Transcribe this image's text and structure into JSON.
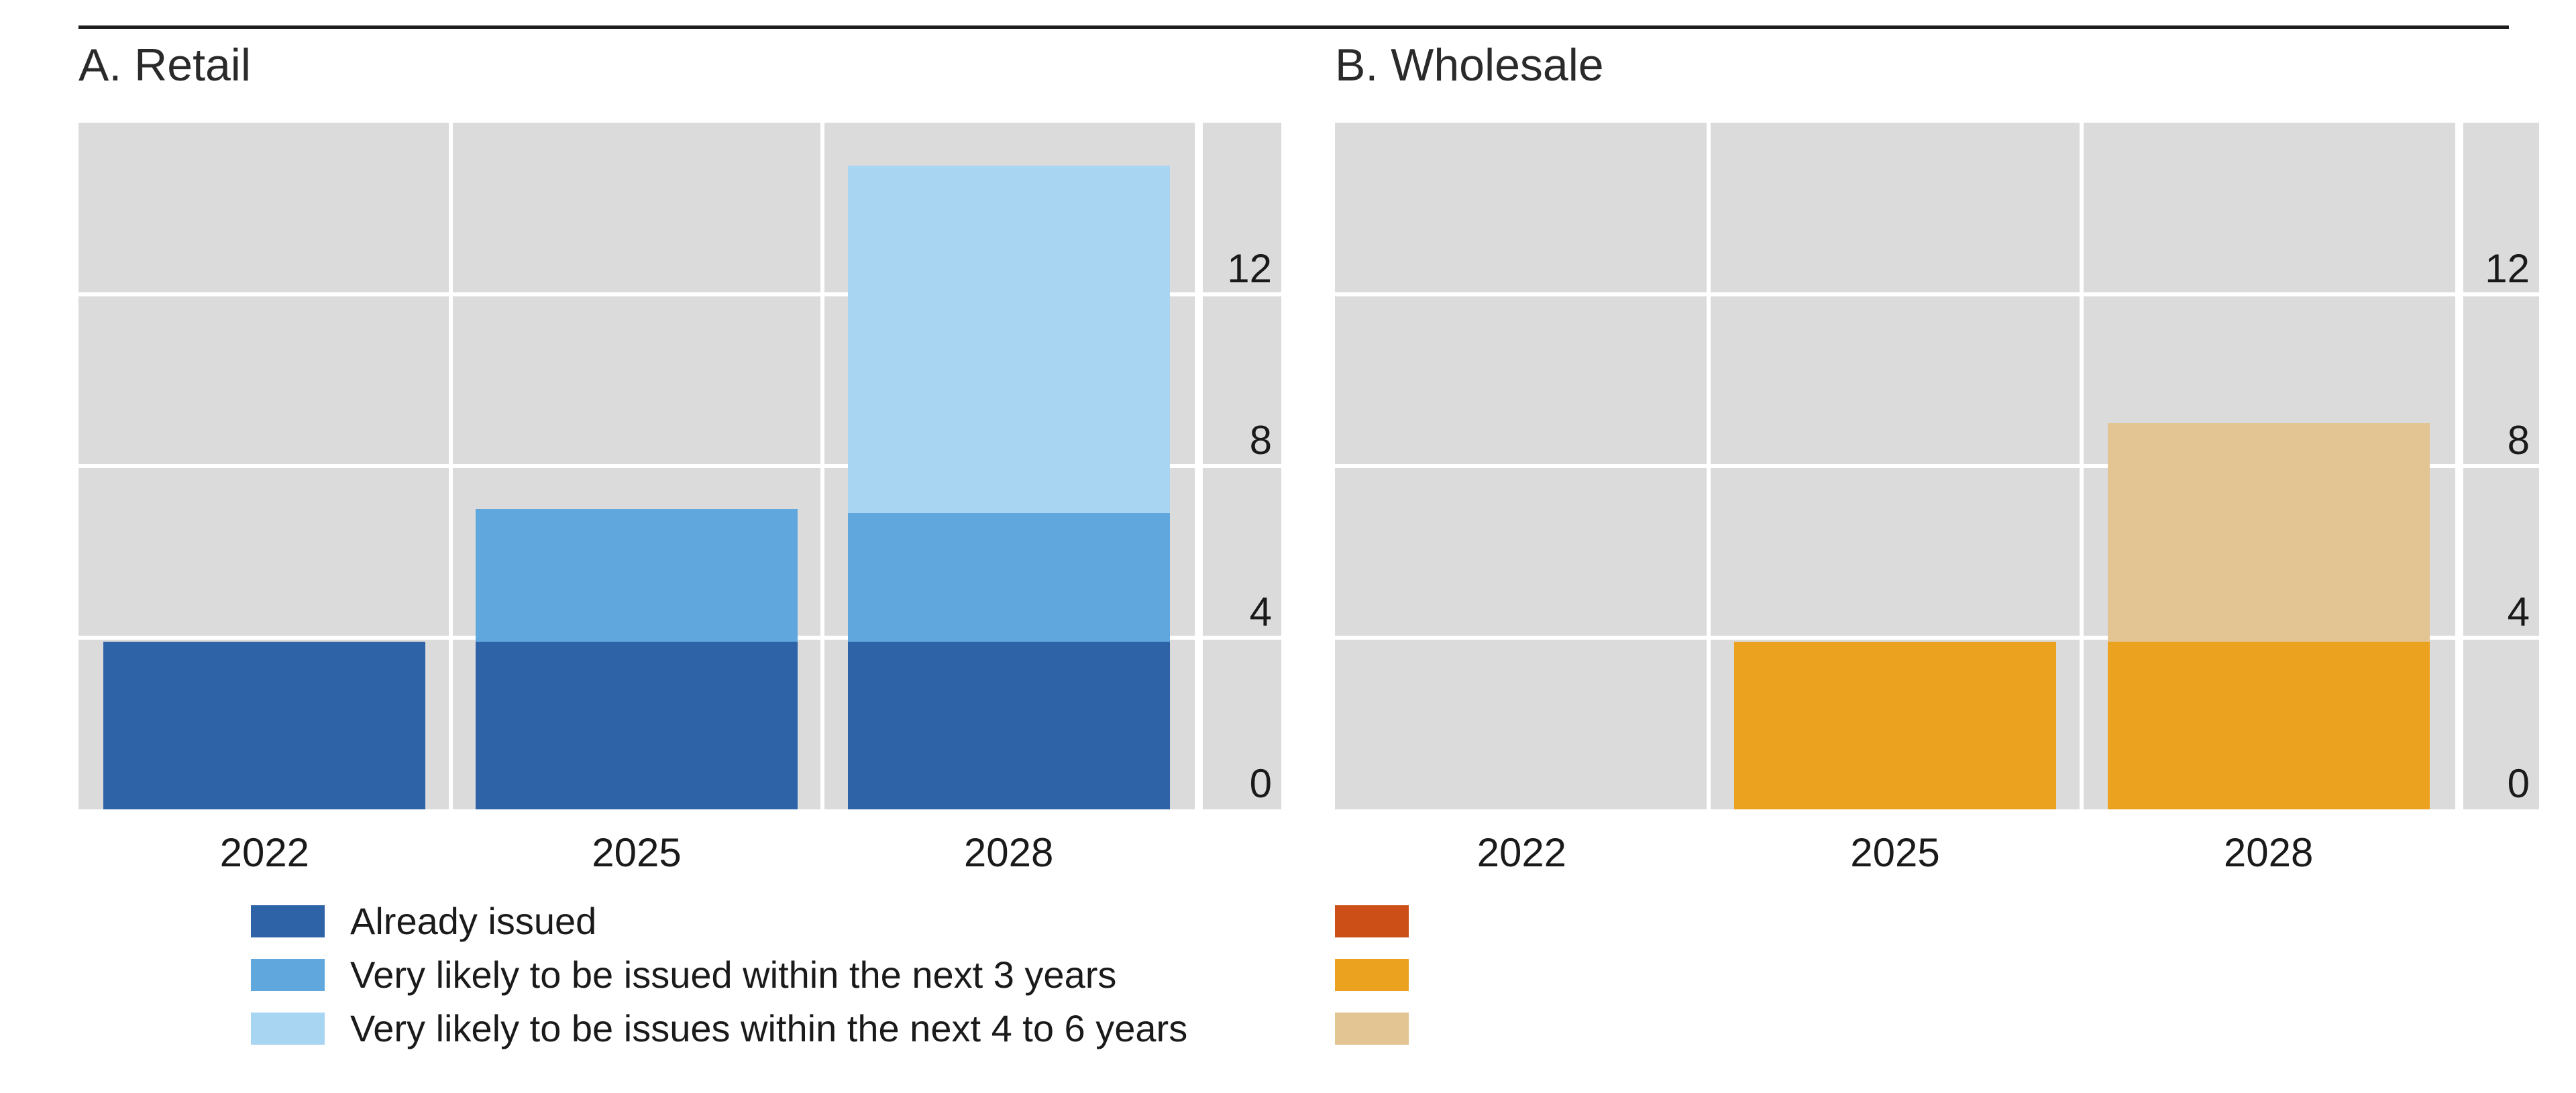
{
  "figure": {
    "panels": [
      {
        "title": "A. Retail"
      },
      {
        "title": "B. Wholesale"
      }
    ]
  },
  "chart_data": [
    {
      "type": "bar",
      "stacked": true,
      "title": "A. Retail",
      "categories": [
        "2022",
        "2025",
        "2028"
      ],
      "series": [
        {
          "name": "Already issued",
          "color": "#2F63A8",
          "values": [
            3.9,
            3.9,
            3.9
          ]
        },
        {
          "name": "Very likely to be issued within the next 3 years",
          "color": "#5FA7DC",
          "values": [
            0,
            3.1,
            3.0
          ]
        },
        {
          "name": "Very likely to be issues within the next 4 to 6 years",
          "color": "#A8D5F2",
          "values": [
            0,
            0,
            8.1
          ]
        }
      ],
      "totals": [
        3.9,
        7.0,
        15.0
      ],
      "ylim": [
        0,
        16
      ],
      "yticks": [
        0,
        4,
        8,
        12
      ],
      "grid": true,
      "plot_background": "#dbdbdb",
      "legend_position": "bottom-left"
    },
    {
      "type": "bar",
      "stacked": true,
      "title": "B. Wholesale",
      "categories": [
        "2022",
        "2025",
        "2028"
      ],
      "series": [
        {
          "name": "Already issued",
          "color": "#CB4F16",
          "values": [
            0,
            0,
            0
          ]
        },
        {
          "name": "Very likely to be issued within the next 3 years",
          "color": "#EBA21E",
          "values": [
            0,
            3.9,
            3.9
          ]
        },
        {
          "name": "Very likely to be issues within the next 4 to 6 years",
          "color": "#E3C493",
          "values": [
            0,
            0,
            5.1
          ]
        }
      ],
      "totals": [
        0,
        3.9,
        9.0
      ],
      "ylim": [
        0,
        16
      ],
      "yticks": [
        0,
        4,
        8,
        12
      ],
      "grid": true,
      "plot_background": "#dbdbdb",
      "legend_position": "bottom-left"
    }
  ],
  "legend": {
    "retail": [
      {
        "label": "Already issued",
        "color": "#2F63A8"
      },
      {
        "label": "Very likely to be issued within the next 3 years",
        "color": "#5FA7DC"
      },
      {
        "label": "Very likely to be issues within the next 4 to 6 years",
        "color": "#A8D5F2"
      }
    ],
    "wholesale": [
      {
        "label": "",
        "color": "#CB4F16"
      },
      {
        "label": "",
        "color": "#EBA21E"
      },
      {
        "label": "",
        "color": "#E3C493"
      }
    ]
  }
}
